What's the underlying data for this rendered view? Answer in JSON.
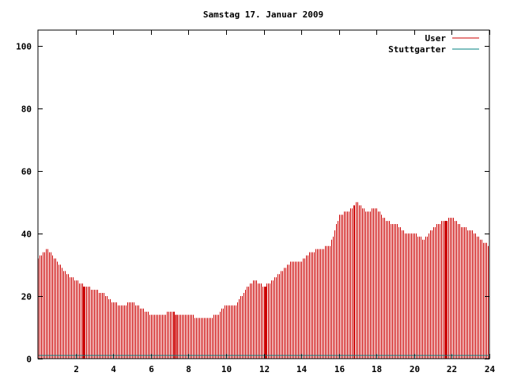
{
  "chart_data": {
    "type": "bar",
    "title": "Samstag 17. Januar 2009",
    "xlabel": "",
    "ylabel": "",
    "xlim": [
      0,
      24
    ],
    "ylim": [
      0,
      105
    ],
    "x_ticks": [
      "2",
      "4",
      "6",
      "8",
      "10",
      "12",
      "14",
      "16",
      "18",
      "20",
      "22",
      "24"
    ],
    "y_ticks": [
      "0",
      "20",
      "40",
      "60",
      "80",
      "100"
    ],
    "legend_position": "top-right",
    "grid": false,
    "series": [
      {
        "name": "User",
        "color": "#cc0000",
        "x_hours": [
          0.0,
          0.5,
          1.0,
          1.5,
          2.0,
          2.5,
          3.0,
          3.5,
          4.0,
          4.5,
          5.0,
          5.5,
          6.0,
          6.5,
          7.0,
          7.5,
          8.0,
          8.5,
          9.0,
          9.5,
          10.0,
          10.5,
          11.0,
          11.5,
          12.0,
          12.5,
          13.0,
          13.5,
          14.0,
          14.5,
          15.0,
          15.5,
          16.0,
          16.5,
          17.0,
          17.5,
          18.0,
          18.5,
          19.0,
          19.5,
          20.0,
          20.5,
          21.0,
          21.5,
          22.0,
          22.5,
          23.0,
          23.5,
          24.0
        ],
        "values": [
          32,
          35,
          31,
          27,
          25,
          23,
          22,
          21,
          18,
          17,
          18,
          16,
          14,
          14,
          15,
          14,
          14,
          13,
          13,
          14,
          17,
          17,
          22,
          25,
          23,
          25,
          28,
          31,
          31,
          34,
          35,
          36,
          46,
          47,
          50,
          47,
          48,
          44,
          43,
          40,
          40,
          38,
          42,
          44,
          45,
          42,
          41,
          38,
          36
        ]
      },
      {
        "name": "Stuttgarter",
        "color": "#008080",
        "values": [
          1
        ]
      }
    ],
    "emphasized_bars_hours": [
      2.45,
      7.3,
      12.1,
      21.7
    ]
  }
}
